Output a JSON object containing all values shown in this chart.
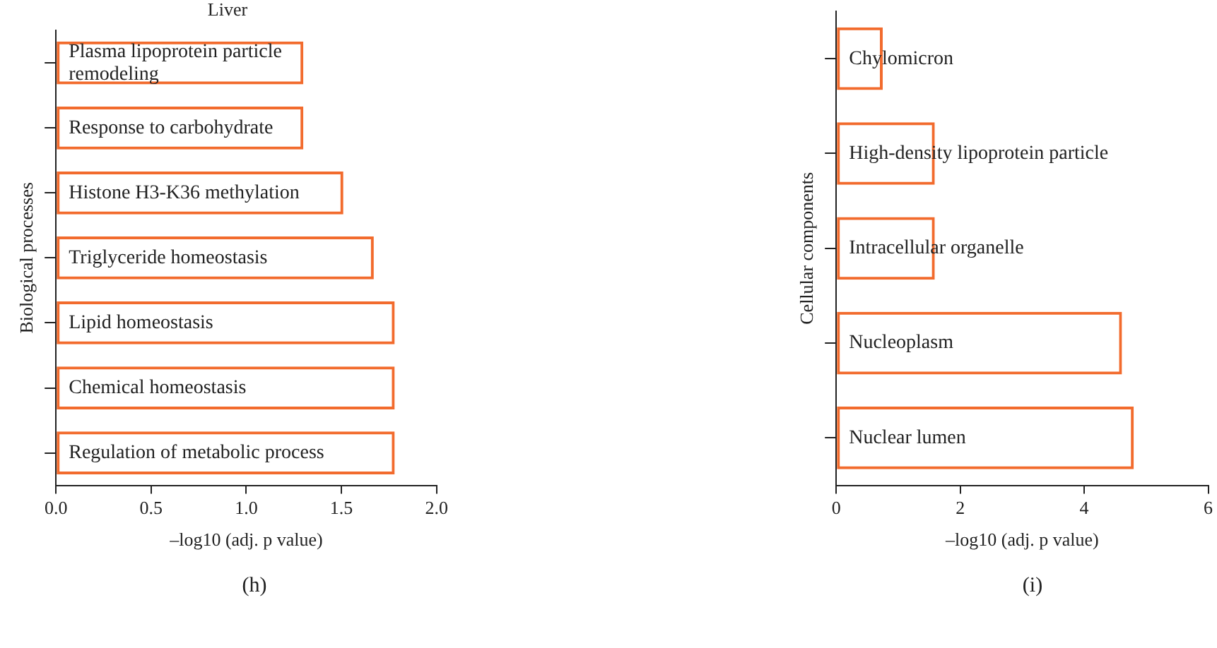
{
  "chart_data": [
    {
      "type": "bar",
      "orientation": "horizontal",
      "title": "Liver",
      "xlabel": "–log10 (adj. p value)",
      "ylabel": "Biological processes",
      "categories": [
        "Plasma lipoprotein particle remodeling",
        "Response to carbohydrate",
        "Histone H3-K36 methylation",
        "Triglyceride homeostasis",
        "Lipid homeostasis",
        "Chemical homeostasis",
        "Regulation of metabolic process"
      ],
      "values": [
        1.3,
        1.3,
        1.51,
        1.67,
        1.78,
        1.78,
        1.78
      ],
      "color": "#f26b2d",
      "xlim": [
        0,
        2.0
      ],
      "xticks": [
        {
          "value": 0,
          "label": "0.0"
        },
        0.5,
        {
          "value": 1,
          "label": "1.0"
        },
        1.5,
        {
          "value": 2,
          "label": "2.0"
        }
      ],
      "grid": false,
      "tick_labels": "x",
      "annotations": [
        "(h)"
      ]
    },
    {
      "type": "bar",
      "orientation": "horizontal",
      "xlabel": "–log10 (adj. p value)",
      "ylabel": "Cellular components",
      "categories": [
        "Chylomicron",
        "High-density lipoprotein particle",
        "Intracellular organelle",
        "Nucleoplasm",
        "Nuclear lumen"
      ],
      "values": [
        0.75,
        1.59,
        1.59,
        4.61,
        4.8
      ],
      "color": "#f26b2d",
      "xlim": [
        0,
        6
      ],
      "xticks": [
        0,
        2,
        4,
        6
      ],
      "grid": false,
      "tick_labels": "x",
      "annotations": [
        "(i)"
      ]
    }
  ]
}
